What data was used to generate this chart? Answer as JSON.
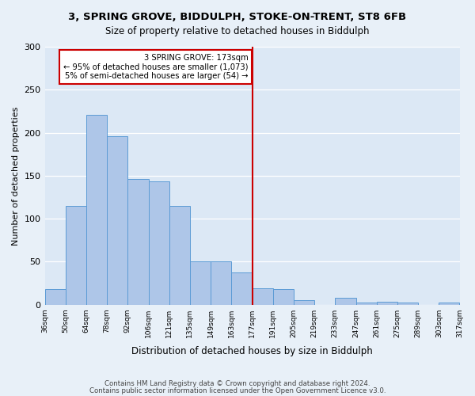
{
  "title1": "3, SPRING GROVE, BIDDULPH, STOKE-ON-TRENT, ST8 6FB",
  "title2": "Size of property relative to detached houses in Biddulph",
  "xlabel": "Distribution of detached houses by size in Biddulph",
  "ylabel": "Number of detached properties",
  "bar_labels": [
    "36sqm",
    "50sqm",
    "64sqm",
    "78sqm",
    "92sqm",
    "106sqm",
    "121sqm",
    "135sqm",
    "149sqm",
    "163sqm",
    "177sqm",
    "191sqm",
    "205sqm",
    "219sqm",
    "233sqm",
    "247sqm",
    "261sqm",
    "275sqm",
    "289sqm",
    "303sqm",
    "317sqm"
  ],
  "bar_values": [
    18,
    115,
    221,
    196,
    146,
    143,
    115,
    50,
    50,
    37,
    19,
    18,
    5,
    0,
    8,
    2,
    3,
    2,
    0,
    2
  ],
  "bar_color": "#aec6e8",
  "bar_edge_color": "#5b9bd5",
  "vline_x": 10,
  "vline_color": "#cc0000",
  "annotation_title": "3 SPRING GROVE: 173sqm",
  "annotation_line1": "← 95% of detached houses are smaller (1,073)",
  "annotation_line2": "5% of semi-detached houses are larger (54) →",
  "annotation_box_color": "#cc0000",
  "ylim": [
    0,
    300
  ],
  "yticks": [
    0,
    50,
    100,
    150,
    200,
    250,
    300
  ],
  "footer1": "Contains HM Land Registry data © Crown copyright and database right 2024.",
  "footer2": "Contains public sector information licensed under the Open Government Licence v3.0.",
  "bg_color": "#e8f0f8",
  "plot_bg_color": "#dce8f5"
}
